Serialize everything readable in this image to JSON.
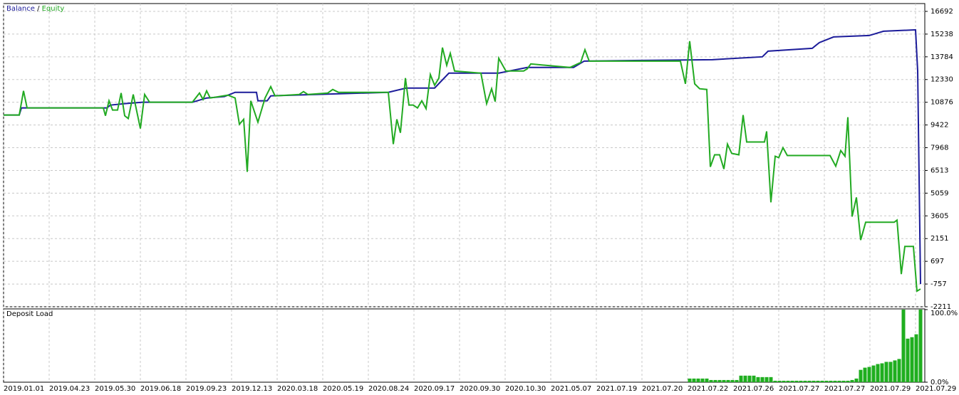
{
  "chart_data": [
    {
      "type": "line",
      "legend_separator": "/",
      "xlim": [
        5,
        1298
      ],
      "ylim": [
        -2211,
        17192
      ],
      "yticks": [
        16692,
        15238,
        13784,
        12330,
        10876,
        9422,
        7968,
        6513,
        5059,
        3605,
        2151,
        697,
        -757,
        -2211
      ],
      "grid": true,
      "series": [
        {
          "name": "Balance",
          "color": "#1c1c9a",
          "x": [
            5,
            27,
            30,
            150,
            155,
            175,
            200,
            270,
            290,
            315,
            330,
            360,
            362,
            375,
            380,
            545,
            570,
            610,
            630,
            700,
            740,
            805,
            820,
            1000,
            1070,
            1078,
            1140,
            1150,
            1170,
            1220,
            1240,
            1285,
            1288,
            1292
          ],
          "values": [
            10058,
            10058,
            10512,
            10512,
            10694,
            10785,
            10876,
            10876,
            11148,
            11239,
            11512,
            11512,
            10967,
            10967,
            11285,
            11512,
            11784,
            11784,
            12739,
            12739,
            13102,
            13102,
            13511,
            13602,
            13784,
            14147,
            14329,
            14693,
            15056,
            15147,
            15420,
            15511,
            12875,
            -757
          ]
        },
        {
          "name": "Equity",
          "color": "#22aa22",
          "x": [
            5,
            27,
            33,
            38,
            145,
            148,
            153,
            158,
            165,
            170,
            175,
            180,
            187,
            197,
            203,
            210,
            270,
            280,
            285,
            290,
            295,
            320,
            330,
            336,
            342,
            347,
            352,
            362,
            372,
            380,
            386,
            420,
            426,
            432,
            460,
            467,
            475,
            545,
            552,
            557,
            562,
            569,
            574,
            580,
            586,
            592,
            598,
            604,
            610,
            616,
            621,
            627,
            632,
            638,
            675,
            683,
            690,
            695,
            700,
            710,
            735,
            740,
            745,
            800,
            815,
            821,
            827,
            955,
            962,
            968,
            975,
            982,
            992,
            997,
            1003,
            1010,
            1016,
            1021,
            1027,
            1037,
            1043,
            1048,
            1073,
            1076,
            1082,
            1088,
            1093,
            1099,
            1105,
            1165,
            1173,
            1180,
            1186,
            1190,
            1196,
            1202,
            1208,
            1215,
            1255,
            1259,
            1265,
            1270,
            1282,
            1287,
            1292
          ],
          "values": [
            10058,
            10058,
            11603,
            10512,
            10512,
            10012,
            10967,
            10376,
            10376,
            11466,
            10012,
            9831,
            11376,
            9194,
            11376,
            10876,
            10876,
            11466,
            11057,
            11603,
            11148,
            11330,
            11148,
            9467,
            9785,
            6423,
            10967,
            9603,
            11148,
            11875,
            11285,
            11376,
            11557,
            11376,
            11466,
            11694,
            11512,
            11512,
            8195,
            9785,
            8922,
            12421,
            10694,
            10694,
            10512,
            10967,
            10467,
            12648,
            11966,
            12421,
            14375,
            13239,
            14011,
            12875,
            12739,
            10785,
            11739,
            10921,
            13693,
            12875,
            12875,
            13011,
            13329,
            13102,
            13420,
            14238,
            13511,
            13511,
            12057,
            14784,
            12057,
            11739,
            11694,
            6741,
            7513,
            7513,
            6604,
            8195,
            7604,
            7513,
            10058,
            8331,
            8331,
            9013,
            4469,
            7422,
            7331,
            7968,
            7468,
            7468,
            6786,
            7786,
            7422,
            9921,
            3560,
            4787,
            2060,
            3196,
            3196,
            3333,
            -121,
            1651,
            1651,
            -1211,
            -1075
          ]
        }
      ]
    },
    {
      "type": "bar",
      "title": "Deposit Load",
      "color": "#1fae1f",
      "xlim": [
        5,
        1298
      ],
      "ylim": [
        0,
        100
      ],
      "yticks": [
        {
          "value": 100,
          "label": "100.0%"
        },
        {
          "value": 0,
          "label": "0.0%"
        }
      ],
      "xticks": [
        {
          "value": 5,
          "label": "2019.01.01"
        },
        {
          "value": 69,
          "label": "2019.04.23"
        },
        {
          "value": 133,
          "label": "2019.05.30"
        },
        {
          "value": 197,
          "label": "2019.06.18"
        },
        {
          "value": 261,
          "label": "2019.09.23"
        },
        {
          "value": 325,
          "label": "2019.12.13"
        },
        {
          "value": 389,
          "label": "2020.03.18"
        },
        {
          "value": 453,
          "label": "2020.05.19"
        },
        {
          "value": 517,
          "label": "2020.08.24"
        },
        {
          "value": 581,
          "label": "2020.09.17"
        },
        {
          "value": 645,
          "label": "2020.09.30"
        },
        {
          "value": 709,
          "label": "2020.10.30"
        },
        {
          "value": 773,
          "label": "2021.05.07"
        },
        {
          "value": 837,
          "label": "2021.07.19"
        },
        {
          "value": 901,
          "label": "2021.07.20"
        },
        {
          "value": 965,
          "label": "2021.07.22"
        },
        {
          "value": 1029,
          "label": "2021.07.26"
        },
        {
          "value": 1093,
          "label": "2021.07.27"
        },
        {
          "value": 1157,
          "label": "2021.07.27"
        },
        {
          "value": 1221,
          "label": "2021.07.29"
        },
        {
          "value": 1285,
          "label": "2021.07.29"
        }
      ],
      "x": [
        968,
        974,
        980,
        986,
        992,
        998,
        1004,
        1010,
        1016,
        1022,
        1028,
        1034,
        1040,
        1046,
        1052,
        1058,
        1064,
        1070,
        1076,
        1082,
        1088,
        1094,
        1100,
        1106,
        1112,
        1118,
        1124,
        1130,
        1136,
        1142,
        1148,
        1154,
        1160,
        1166,
        1172,
        1178,
        1184,
        1190,
        1196,
        1202,
        1208,
        1214,
        1220,
        1226,
        1232,
        1238,
        1244,
        1250,
        1256,
        1262,
        1268,
        1274,
        1280,
        1286,
        1292
      ],
      "values": [
        5,
        5,
        5,
        5,
        5,
        3,
        3,
        3,
        3,
        3,
        3,
        3,
        9,
        9,
        9,
        9,
        7,
        7,
        7,
        7,
        2,
        2,
        2,
        2,
        2,
        2,
        2,
        2,
        2,
        2,
        2,
        2,
        2,
        2,
        2,
        2,
        2,
        2,
        3,
        5,
        17,
        20,
        21,
        23,
        25,
        26,
        28,
        28,
        30,
        32,
        100,
        60,
        62,
        66,
        100
      ]
    }
  ]
}
